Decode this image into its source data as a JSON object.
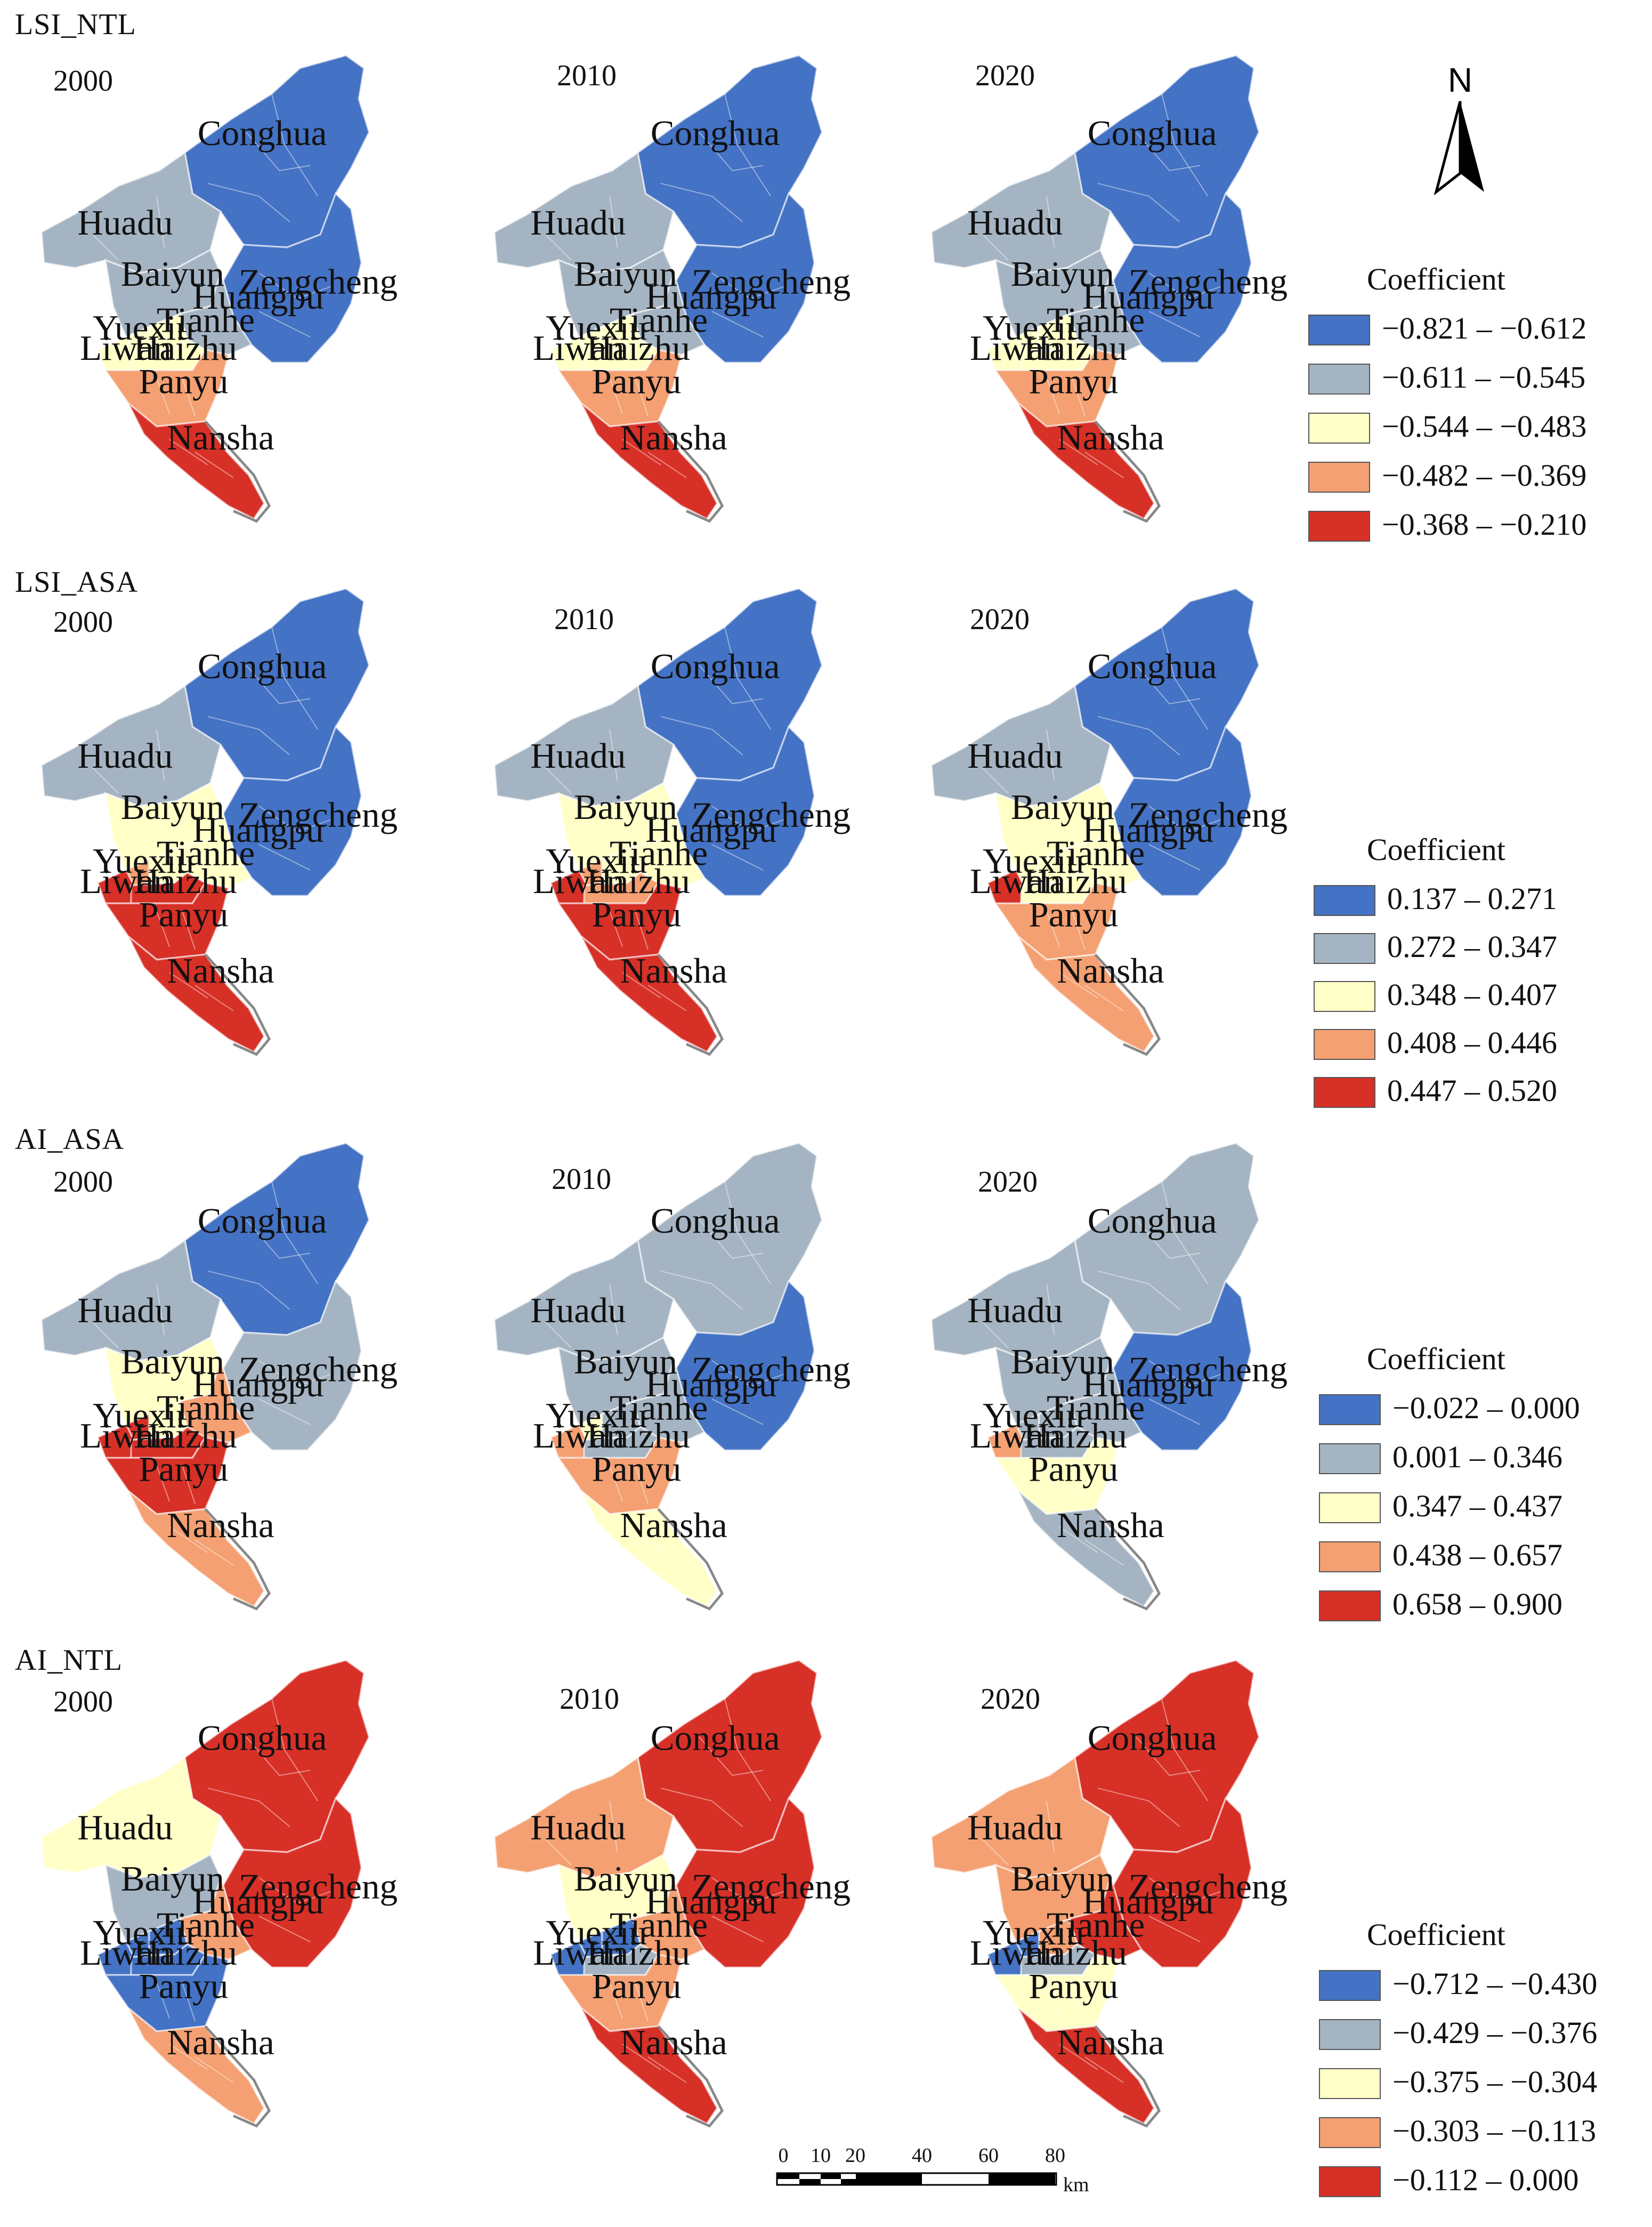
{
  "colors": {
    "class1": "#4472c4",
    "class2": "#a5b4c2",
    "class3": "#ffffc7",
    "class4": "#f4a072",
    "class5": "#d73027",
    "outline": "#888888"
  },
  "north_arrow": {
    "label": "N"
  },
  "scale_bar": {
    "ticks": [
      "0",
      "10",
      "20",
      "40",
      "60",
      "80"
    ],
    "unit": "km"
  },
  "district_names": [
    "Conghua",
    "Huadu",
    "Zengcheng",
    "Baiyun",
    "Huangpu",
    "Tianhe",
    "Yuexiu",
    "Liwan",
    "Haizhu",
    "Panyu",
    "Nansha"
  ],
  "panels": [
    {
      "label": "LSI_NTL",
      "legend": {
        "title": "Coefficient",
        "ranges": [
          "−0.821 – −0.612",
          "−0.611 – −0.545",
          "−0.544 – −0.483",
          "−0.482 – −0.369",
          "−0.368 – −0.210"
        ]
      },
      "maps": [
        {
          "year": "2000",
          "classes": {
            "Conghua": 1,
            "Huadu": 2,
            "Zengcheng": 1,
            "Baiyun": 2,
            "Huangpu": 2,
            "Tianhe": 3,
            "Yuexiu": 3,
            "Liwan": 3,
            "Haizhu": 3,
            "Panyu": 4,
            "Nansha": 5
          }
        },
        {
          "year": "2010",
          "classes": {
            "Conghua": 1,
            "Huadu": 2,
            "Zengcheng": 1,
            "Baiyun": 2,
            "Huangpu": 2,
            "Tianhe": 3,
            "Yuexiu": 3,
            "Liwan": 3,
            "Haizhu": 3,
            "Panyu": 4,
            "Nansha": 5
          }
        },
        {
          "year": "2020",
          "classes": {
            "Conghua": 1,
            "Huadu": 2,
            "Zengcheng": 1,
            "Baiyun": 2,
            "Huangpu": 2,
            "Tianhe": 3,
            "Yuexiu": 3,
            "Liwan": 3,
            "Haizhu": 3,
            "Panyu": 4,
            "Nansha": 5
          }
        }
      ]
    },
    {
      "label": "LSI_ASA",
      "legend": {
        "title": "Coefficient",
        "ranges": [
          "0.137 – 0.271",
          "0.272 – 0.347",
          "0.348 – 0.407",
          "0.408 – 0.446",
          "0.447 – 0.520"
        ]
      },
      "maps": [
        {
          "year": "2000",
          "classes": {
            "Conghua": 1,
            "Huadu": 2,
            "Zengcheng": 1,
            "Baiyun": 3,
            "Huangpu": 3,
            "Tianhe": 3,
            "Yuexiu": 4,
            "Liwan": 5,
            "Haizhu": 5,
            "Panyu": 5,
            "Nansha": 5
          }
        },
        {
          "year": "2010",
          "classes": {
            "Conghua": 1,
            "Huadu": 2,
            "Zengcheng": 1,
            "Baiyun": 3,
            "Huangpu": 3,
            "Tianhe": 3,
            "Yuexiu": 4,
            "Liwan": 5,
            "Haizhu": 4,
            "Panyu": 5,
            "Nansha": 5
          }
        },
        {
          "year": "2020",
          "classes": {
            "Conghua": 1,
            "Huadu": 2,
            "Zengcheng": 1,
            "Baiyun": 3,
            "Huangpu": 3,
            "Tianhe": 3,
            "Yuexiu": 3,
            "Liwan": 5,
            "Haizhu": 3,
            "Panyu": 4,
            "Nansha": 4
          }
        }
      ]
    },
    {
      "label": "AI_ASA",
      "legend": {
        "title": "Coefficient",
        "ranges": [
          "−0.022 – 0.000",
          "0.001 – 0.346",
          "0.347 – 0.437",
          "0.438 – 0.657",
          "0.658 – 0.900"
        ]
      },
      "maps": [
        {
          "year": "2000",
          "classes": {
            "Conghua": 1,
            "Huadu": 2,
            "Zengcheng": 2,
            "Baiyun": 3,
            "Huangpu": 4,
            "Tianhe": 3,
            "Yuexiu": 5,
            "Liwan": 5,
            "Haizhu": 5,
            "Panyu": 5,
            "Nansha": 4
          }
        },
        {
          "year": "2010",
          "classes": {
            "Conghua": 2,
            "Huadu": 2,
            "Zengcheng": 1,
            "Baiyun": 2,
            "Huangpu": 2,
            "Tianhe": 2,
            "Yuexiu": 3,
            "Liwan": 4,
            "Haizhu": 2,
            "Panyu": 4,
            "Nansha": 3
          }
        },
        {
          "year": "2020",
          "classes": {
            "Conghua": 2,
            "Huadu": 2,
            "Zengcheng": 1,
            "Baiyun": 2,
            "Huangpu": 2,
            "Tianhe": 2,
            "Yuexiu": 2,
            "Liwan": 4,
            "Haizhu": 2,
            "Panyu": 3,
            "Nansha": 2
          }
        }
      ]
    },
    {
      "label": "AI_NTL",
      "legend": {
        "title": "Coefficient",
        "ranges": [
          "−0.712 – −0.430",
          "−0.429 – −0.376",
          "−0.375 – −0.304",
          "−0.303 – −0.113",
          "−0.112 – 0.000"
        ]
      },
      "maps": [
        {
          "year": "2000",
          "classes": {
            "Conghua": 5,
            "Huadu": 3,
            "Zengcheng": 5,
            "Baiyun": 2,
            "Huangpu": 4,
            "Tianhe": 1,
            "Yuexiu": 1,
            "Liwan": 1,
            "Haizhu": 1,
            "Panyu": 1,
            "Nansha": 4
          }
        },
        {
          "year": "2010",
          "classes": {
            "Conghua": 5,
            "Huadu": 4,
            "Zengcheng": 5,
            "Baiyun": 3,
            "Huangpu": 4,
            "Tianhe": 1,
            "Yuexiu": 1,
            "Liwan": 1,
            "Haizhu": 2,
            "Panyu": 4,
            "Nansha": 5
          }
        },
        {
          "year": "2020",
          "classes": {
            "Conghua": 5,
            "Huadu": 4,
            "Zengcheng": 5,
            "Baiyun": 4,
            "Huangpu": 5,
            "Tianhe": 4,
            "Yuexiu": 1,
            "Liwan": 1,
            "Haizhu": 2,
            "Panyu": 3,
            "Nansha": 5
          }
        }
      ]
    }
  ]
}
